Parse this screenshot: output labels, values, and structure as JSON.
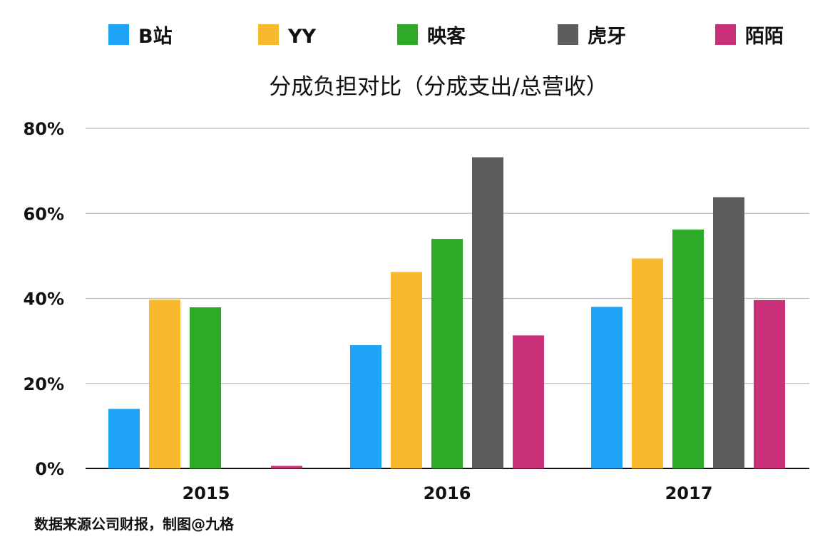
{
  "chart_data": {
    "type": "bar",
    "title": "分成负担对比（分成支出/总营收）",
    "categories": [
      "2015",
      "2016",
      "2017"
    ],
    "series": [
      {
        "name": "B站",
        "color": "#1fa3f7",
        "values": [
          14,
          29,
          38
        ]
      },
      {
        "name": "YY",
        "color": "#f7b92e",
        "values": [
          39.7,
          46.2,
          49.4
        ]
      },
      {
        "name": "映客",
        "color": "#2daa28",
        "values": [
          37.9,
          54,
          56.2
        ]
      },
      {
        "name": "虎牙",
        "color": "#5d5d5d",
        "values": [
          null,
          73.2,
          63.8
        ]
      },
      {
        "name": "陌陌",
        "color": "#c9307a",
        "values": [
          0.6,
          31.3,
          39.6
        ]
      }
    ],
    "yticks": [
      "0%",
      "20%",
      "40%",
      "60%",
      "80%"
    ],
    "ylim": [
      0,
      80
    ],
    "grid": true,
    "legend_position": "top"
  },
  "source": "数据来源公司财报，制图@九格"
}
